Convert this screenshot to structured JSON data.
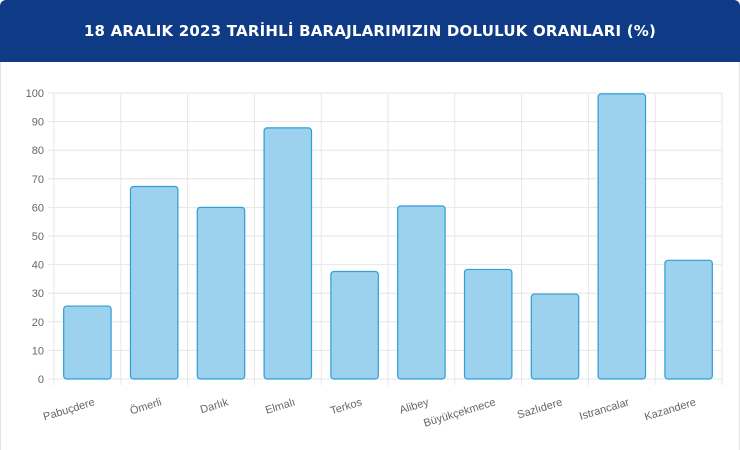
{
  "header": {
    "title": "18 ARALIK 2023 TARİHLİ BARAJLARIMIZIN DOLULUK ORANLARI (%)"
  },
  "colors": {
    "header_bg": "#0f3a86",
    "bar_fill": "#9dd2ef",
    "bar_stroke": "#2e9ed6",
    "grid": "#e6e6e6"
  },
  "chart_data": {
    "type": "bar",
    "title": "18 ARALIK 2023 TARİHLİ BARAJLARIMIZIN DOLULUK ORANLARI (%)",
    "categories": [
      "Pabuçdere",
      "Ömerli",
      "Darlık",
      "Elmalı",
      "Terkos",
      "Alibey",
      "Büyükçekmece",
      "Sazlıdere",
      "Istrancalar",
      "Kazandere"
    ],
    "values": [
      25.5,
      67.3,
      60.0,
      87.8,
      37.6,
      60.5,
      38.3,
      29.7,
      99.7,
      41.5
    ],
    "ylim": [
      0,
      100
    ],
    "yticks": [
      0,
      10,
      20,
      30,
      40,
      50,
      60,
      70,
      80,
      90,
      100
    ],
    "grid": true,
    "legend": "none"
  }
}
